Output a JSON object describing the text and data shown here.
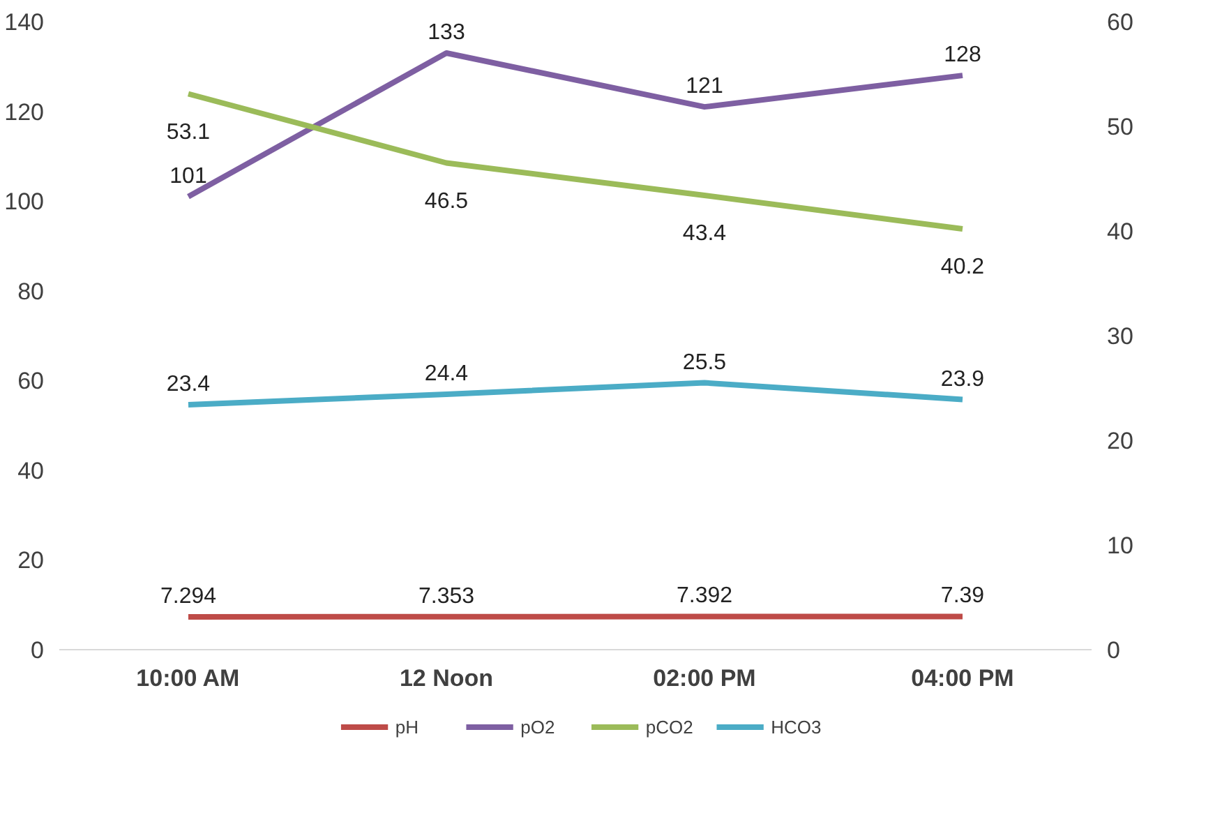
{
  "chart_data": {
    "type": "line",
    "categories": [
      "10:00 AM",
      "12 Noon",
      "02:00 PM",
      "04:00 PM"
    ],
    "series": [
      {
        "name": "pH",
        "color": "#be4b48",
        "values": [
          7.294,
          7.353,
          7.392,
          7.39
        ]
      },
      {
        "name": "pO2",
        "color": "#7e5fa2",
        "values": [
          101,
          133,
          121,
          128
        ]
      },
      {
        "name": "pCO2",
        "color": "#9bbb59",
        "values": [
          53.1,
          46.5,
          43.4,
          40.2
        ],
        "axis": "y2"
      },
      {
        "name": "HCO3",
        "color": "#4bacc6",
        "values": [
          23.4,
          24.4,
          25.5,
          23.9
        ],
        "axis": "y2"
      }
    ],
    "ylim": [
      0,
      140
    ],
    "yticks": [
      0,
      20,
      40,
      60,
      80,
      100,
      120,
      140
    ],
    "y2lim": [
      0,
      60
    ],
    "y2ticks": [
      0,
      10,
      20,
      30,
      40,
      50,
      60
    ],
    "data_labels": true,
    "legend": "bottom",
    "grid": false,
    "marker": "none",
    "line_style": "solid"
  }
}
